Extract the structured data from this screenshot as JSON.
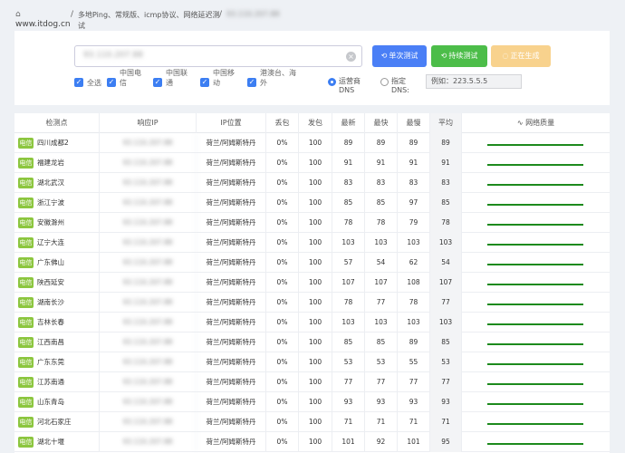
{
  "header": {
    "home_icon": "home-icon",
    "site": "www.itdog.cn",
    "separator": "/",
    "title": "多地Ping、常规版、icmp协议、网络延迟测试",
    "host": "93.110.207.88"
  },
  "search": {
    "value": "93.110.207.88",
    "clear_icon": "close-circle-icon"
  },
  "buttons": {
    "single": "单次测试",
    "continuous": "持续测试",
    "generating": "正在生成"
  },
  "filters": [
    {
      "label": "全选"
    },
    {
      "label": "中国电信"
    },
    {
      "label": "中国联通"
    },
    {
      "label": "中国移动"
    },
    {
      "label": "港澳台、海外"
    }
  ],
  "dns": {
    "operator_label": "运营商DNS",
    "custom_label": "指定DNS:",
    "custom_placeholder": "例如：223.5.5.5"
  },
  "table": {
    "headers": {
      "node": "检测点",
      "ip": "响应IP",
      "location": "IP位置",
      "loss": "丢包",
      "sent": "发包",
      "latest": "最新",
      "fastest": "最快",
      "slowest": "最慢",
      "avg": "平均",
      "quality": "网络质量"
    },
    "rows": [
      {
        "isp": "电信",
        "node": "四川成都2",
        "ip": "93.110.207.88",
        "location": "荷兰/阿姆斯特丹",
        "loss": "0%",
        "sent": "100",
        "latest": "89",
        "fastest": "89",
        "slowest": "89",
        "avg": "89"
      },
      {
        "isp": "电信",
        "node": "福建龙岩",
        "ip": "93.110.207.88",
        "location": "荷兰/阿姆斯特丹",
        "loss": "0%",
        "sent": "100",
        "latest": "91",
        "fastest": "91",
        "slowest": "91",
        "avg": "91"
      },
      {
        "isp": "电信",
        "node": "湖北武汉",
        "ip": "93.110.207.88",
        "location": "荷兰/阿姆斯特丹",
        "loss": "0%",
        "sent": "100",
        "latest": "83",
        "fastest": "83",
        "slowest": "83",
        "avg": "83"
      },
      {
        "isp": "电信",
        "node": "浙江宁波",
        "ip": "93.110.207.88",
        "location": "荷兰/阿姆斯特丹",
        "loss": "0%",
        "sent": "100",
        "latest": "85",
        "fastest": "85",
        "slowest": "97",
        "avg": "85"
      },
      {
        "isp": "电信",
        "node": "安徽滁州",
        "ip": "93.110.207.88",
        "location": "荷兰/阿姆斯特丹",
        "loss": "0%",
        "sent": "100",
        "latest": "78",
        "fastest": "78",
        "slowest": "79",
        "avg": "78"
      },
      {
        "isp": "电信",
        "node": "辽宁大连",
        "ip": "93.110.207.88",
        "location": "荷兰/阿姆斯特丹",
        "loss": "0%",
        "sent": "100",
        "latest": "103",
        "fastest": "103",
        "slowest": "103",
        "avg": "103"
      },
      {
        "isp": "电信",
        "node": "广东佛山",
        "ip": "93.110.207.88",
        "location": "荷兰/阿姆斯特丹",
        "loss": "0%",
        "sent": "100",
        "latest": "57",
        "fastest": "54",
        "slowest": "62",
        "avg": "54"
      },
      {
        "isp": "电信",
        "node": "陕西延安",
        "ip": "93.110.207.88",
        "location": "荷兰/阿姆斯特丹",
        "loss": "0%",
        "sent": "100",
        "latest": "107",
        "fastest": "107",
        "slowest": "108",
        "avg": "107"
      },
      {
        "isp": "电信",
        "node": "湖南长沙",
        "ip": "93.110.207.88",
        "location": "荷兰/阿姆斯特丹",
        "loss": "0%",
        "sent": "100",
        "latest": "78",
        "fastest": "77",
        "slowest": "78",
        "avg": "77"
      },
      {
        "isp": "电信",
        "node": "吉林长春",
        "ip": "93.110.207.88",
        "location": "荷兰/阿姆斯特丹",
        "loss": "0%",
        "sent": "100",
        "latest": "103",
        "fastest": "103",
        "slowest": "103",
        "avg": "103"
      },
      {
        "isp": "电信",
        "node": "江西南昌",
        "ip": "93.110.207.88",
        "location": "荷兰/阿姆斯特丹",
        "loss": "0%",
        "sent": "100",
        "latest": "85",
        "fastest": "85",
        "slowest": "89",
        "avg": "85"
      },
      {
        "isp": "电信",
        "node": "广东东莞",
        "ip": "93.110.207.88",
        "location": "荷兰/阿姆斯特丹",
        "loss": "0%",
        "sent": "100",
        "latest": "53",
        "fastest": "53",
        "slowest": "55",
        "avg": "53"
      },
      {
        "isp": "电信",
        "node": "江苏南通",
        "ip": "93.110.207.88",
        "location": "荷兰/阿姆斯特丹",
        "loss": "0%",
        "sent": "100",
        "latest": "77",
        "fastest": "77",
        "slowest": "77",
        "avg": "77"
      },
      {
        "isp": "电信",
        "node": "山东青岛",
        "ip": "93.110.207.88",
        "location": "荷兰/阿姆斯特丹",
        "loss": "0%",
        "sent": "100",
        "latest": "93",
        "fastest": "93",
        "slowest": "93",
        "avg": "93"
      },
      {
        "isp": "电信",
        "node": "河北石家庄",
        "ip": "93.110.207.88",
        "location": "荷兰/阿姆斯特丹",
        "loss": "0%",
        "sent": "100",
        "latest": "71",
        "fastest": "71",
        "slowest": "71",
        "avg": "71"
      },
      {
        "isp": "电信",
        "node": "湖北十堰",
        "ip": "93.110.207.88",
        "location": "荷兰/阿姆斯特丹",
        "loss": "0%",
        "sent": "100",
        "latest": "101",
        "fastest": "92",
        "slowest": "101",
        "avg": "95"
      }
    ]
  },
  "colors": {
    "isp_badge": "#8cc63f",
    "quality_bar": "#1d8a1d",
    "primary": "#4a7ff6",
    "success": "#4cbd49",
    "warning": "#f8d28d"
  }
}
